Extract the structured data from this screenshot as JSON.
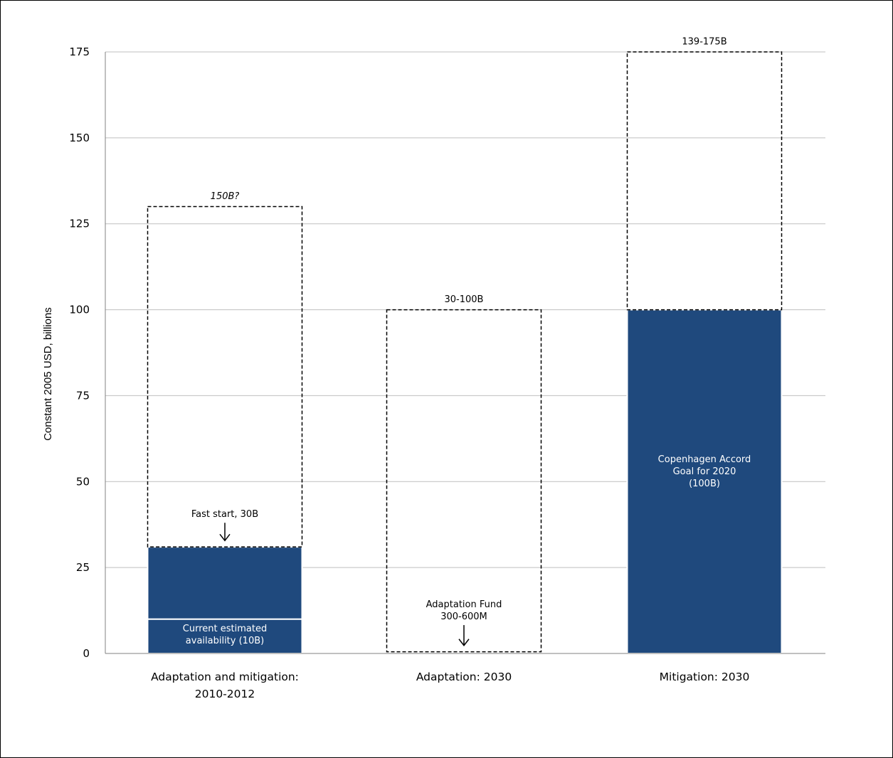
{
  "chart_data": {
    "type": "bar",
    "title": "",
    "ylabel": "Constant 2005 USD, billions",
    "xlabel": "",
    "ylim": [
      0,
      175
    ],
    "yticks": [
      0,
      25,
      50,
      75,
      100,
      125,
      150,
      175
    ],
    "grid": true,
    "categories": [
      [
        "Adaptation and mitigation:",
        "2010-2012"
      ],
      [
        "Adaptation: 2030"
      ],
      [
        "Mitigation: 2030"
      ]
    ],
    "bar_color": "#1f497d",
    "series": [
      {
        "kind": "solid",
        "values": [
          [
            0,
            10
          ],
          null,
          [
            0,
            100
          ]
        ]
      },
      {
        "kind": "solid",
        "values": [
          [
            10,
            31
          ],
          null,
          null
        ]
      },
      {
        "kind": "dashed-range",
        "values": [
          [
            31,
            130
          ],
          [
            0.5,
            100
          ],
          [
            100,
            175
          ]
        ]
      }
    ],
    "annotations": [
      {
        "id": "label-150b",
        "lines": [
          "150B?"
        ],
        "category": 0,
        "y": 133,
        "style": "italic",
        "color": "#000000"
      },
      {
        "id": "label-fast-start",
        "lines": [
          "Fast start, 30B"
        ],
        "category": 0,
        "y": 40.5,
        "color": "#000000",
        "arrow_to": 32
      },
      {
        "id": "label-current",
        "lines": [
          "Current estimated",
          "availability (10B)"
        ],
        "category": 0,
        "y": 5.5,
        "color": "#ffffff"
      },
      {
        "id": "label-30-100b",
        "lines": [
          "30-100B"
        ],
        "category": 1,
        "y": 103,
        "color": "#000000"
      },
      {
        "id": "label-adapt-fund",
        "lines": [
          "Adaptation Fund",
          "300-600M"
        ],
        "category": 1,
        "y": 12.5,
        "color": "#000000",
        "arrow_to": 1.5
      },
      {
        "id": "label-139-175b",
        "lines": [
          "139-175B"
        ],
        "category": 2,
        "y": 178,
        "color": "#000000"
      },
      {
        "id": "label-copenhagen",
        "lines": [
          "Copenhagen Accord",
          "Goal for 2020",
          "(100B)"
        ],
        "category": 2,
        "y": 53,
        "color": "#ffffff"
      }
    ]
  }
}
